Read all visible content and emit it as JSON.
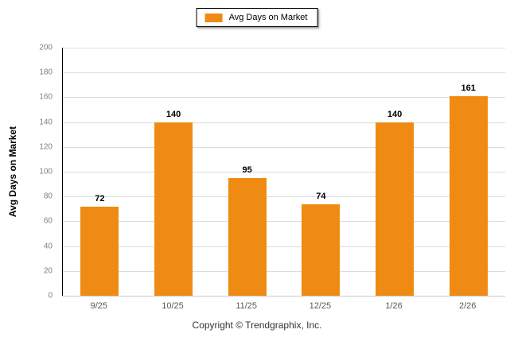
{
  "chart_data": {
    "type": "bar",
    "categories": [
      "9/25",
      "10/25",
      "11/25",
      "12/25",
      "1/26",
      "2/26"
    ],
    "values": [
      72,
      140,
      95,
      74,
      140,
      161
    ],
    "title": "",
    "xlabel": "",
    "ylabel": "Avg Days on Market",
    "ylim": [
      0,
      200
    ],
    "ytick_step": 20,
    "grid": true,
    "legend": {
      "label": "Avg Days on Market",
      "position": "top-center"
    },
    "colors": {
      "bar": "#EF8B12",
      "gridline": "#dcdcdc",
      "axis": "#000000",
      "tick_text": "#7f7f7f",
      "value_label": "#000000"
    }
  },
  "footer": {
    "copyright": "Copyright © Trendgraphix, Inc."
  }
}
